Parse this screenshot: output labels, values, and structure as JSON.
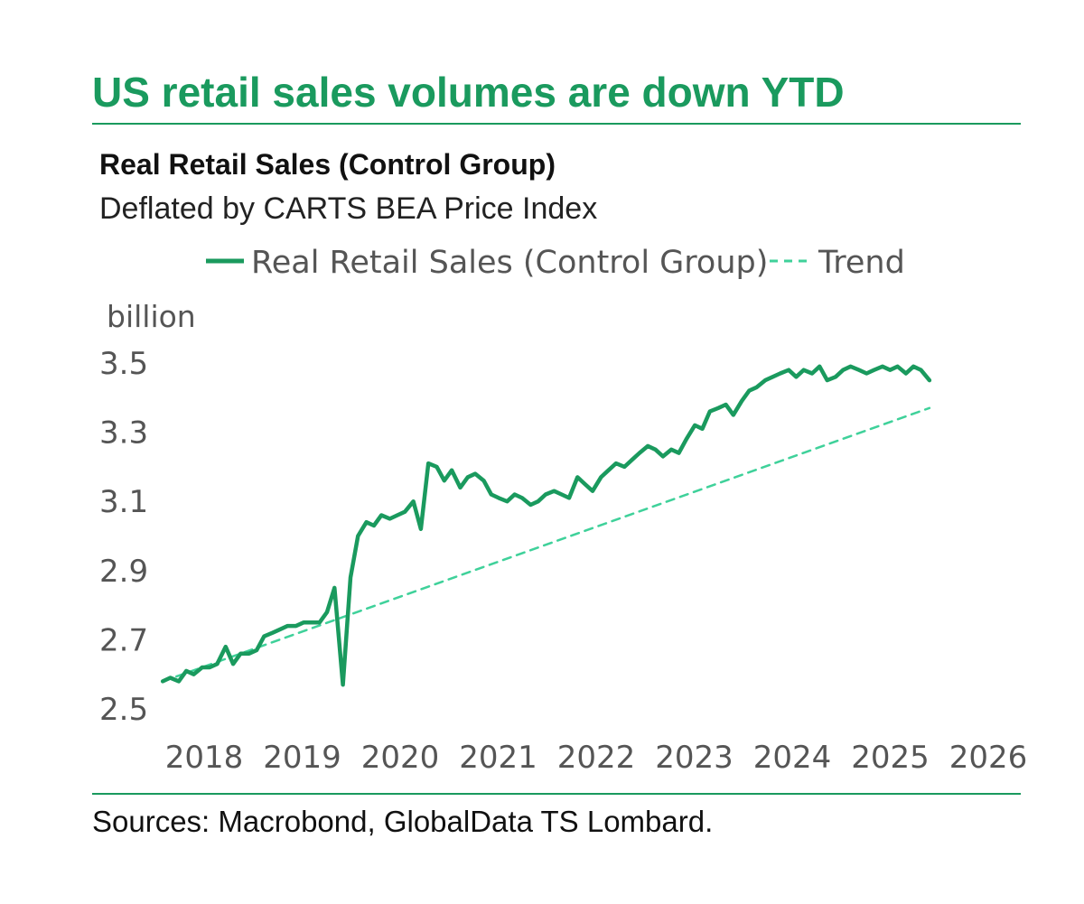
{
  "header": {
    "headline": "US retail sales volumes are down YTD"
  },
  "footer": {
    "source": "Sources: Macrobond, GlobalData TS Lombard."
  },
  "colors": {
    "brand": "#1a9a5e",
    "series_line": "#1a9a5e",
    "trend_line": "#3fd19a",
    "text": "#111111",
    "axis_text": "#555555"
  },
  "chart_data": {
    "type": "line",
    "title": "Real Retail Sales (Control Group)",
    "subtitle": "Deflated by CARTS BEA Price Index",
    "ylabel": "billion",
    "xlabel": "",
    "ylim": [
      2.5,
      3.5
    ],
    "xlim": [
      2017.45,
      2025.7
    ],
    "y_ticks": [
      2.5,
      2.7,
      2.9,
      3.1,
      3.3,
      3.5
    ],
    "y_tick_labels": [
      "2.5",
      "2.7",
      "2.9",
      "3.1",
      "3.3",
      "3.5"
    ],
    "x_tick_labels": [
      "2018",
      "2019",
      "2020",
      "2021",
      "2022",
      "2023",
      "2024",
      "2025",
      "2026"
    ],
    "grid": false,
    "legend": {
      "placement": "top-center",
      "entries": [
        {
          "name": "Real Retail Sales (Control Group)",
          "style": "solid"
        },
        {
          "name": "Trend",
          "style": "dashed"
        }
      ]
    },
    "series": [
      {
        "name": "Real Retail Sales (Control Group)",
        "style": "solid",
        "x": [
          2017.5,
          2017.58,
          2017.67,
          2017.75,
          2017.83,
          2017.92,
          2018.0,
          2018.08,
          2018.17,
          2018.25,
          2018.33,
          2018.42,
          2018.5,
          2018.58,
          2018.67,
          2018.75,
          2018.83,
          2018.92,
          2019.0,
          2019.08,
          2019.17,
          2019.25,
          2019.33,
          2019.42,
          2019.5,
          2019.58,
          2019.67,
          2019.75,
          2019.83,
          2019.92,
          2020.0,
          2020.08,
          2020.17,
          2020.25,
          2020.33,
          2020.42,
          2020.5,
          2020.58,
          2020.67,
          2020.75,
          2020.83,
          2020.92,
          2021.0,
          2021.08,
          2021.17,
          2021.25,
          2021.33,
          2021.42,
          2021.5,
          2021.58,
          2021.67,
          2021.75,
          2021.83,
          2021.92,
          2022.0,
          2022.08,
          2022.17,
          2022.25,
          2022.33,
          2022.42,
          2022.5,
          2022.58,
          2022.67,
          2022.75,
          2022.83,
          2022.92,
          2023.0,
          2023.08,
          2023.17,
          2023.25,
          2023.33,
          2023.42,
          2023.5,
          2023.58,
          2023.67,
          2023.75,
          2023.83,
          2023.92,
          2024.0,
          2024.08,
          2024.17,
          2024.25,
          2024.33,
          2024.42,
          2024.5,
          2024.58,
          2024.67,
          2024.75,
          2024.83,
          2024.92,
          2025.0,
          2025.08,
          2025.17,
          2025.25,
          2025.33,
          2025.42,
          2025.5,
          2025.58,
          2025.67
        ],
        "values": [
          2.58,
          2.59,
          2.58,
          2.61,
          2.6,
          2.62,
          2.62,
          2.63,
          2.68,
          2.63,
          2.66,
          2.66,
          2.67,
          2.71,
          2.72,
          2.73,
          2.74,
          2.74,
          2.75,
          2.75,
          2.75,
          2.78,
          2.85,
          2.57,
          2.88,
          3.0,
          3.04,
          3.03,
          3.06,
          3.05,
          3.06,
          3.07,
          3.1,
          3.02,
          3.21,
          3.2,
          3.16,
          3.19,
          3.14,
          3.17,
          3.18,
          3.16,
          3.12,
          3.11,
          3.1,
          3.12,
          3.11,
          3.09,
          3.1,
          3.12,
          3.13,
          3.12,
          3.11,
          3.17,
          3.15,
          3.13,
          3.17,
          3.19,
          3.21,
          3.2,
          3.22,
          3.24,
          3.26,
          3.25,
          3.23,
          3.25,
          3.24,
          3.28,
          3.32,
          3.31,
          3.36,
          3.37,
          3.38,
          3.35,
          3.39,
          3.42,
          3.43,
          3.45,
          3.46,
          3.47,
          3.48,
          3.46,
          3.48,
          3.47,
          3.49,
          3.45,
          3.46,
          3.48,
          3.49,
          3.48,
          3.47,
          3.48,
          3.49,
          3.48,
          3.49,
          3.47,
          3.49,
          3.48,
          3.45
        ]
      },
      {
        "name": "Trend",
        "style": "dashed",
        "x": [
          2017.5,
          2025.67
        ],
        "values": [
          2.58,
          3.37
        ]
      }
    ]
  }
}
